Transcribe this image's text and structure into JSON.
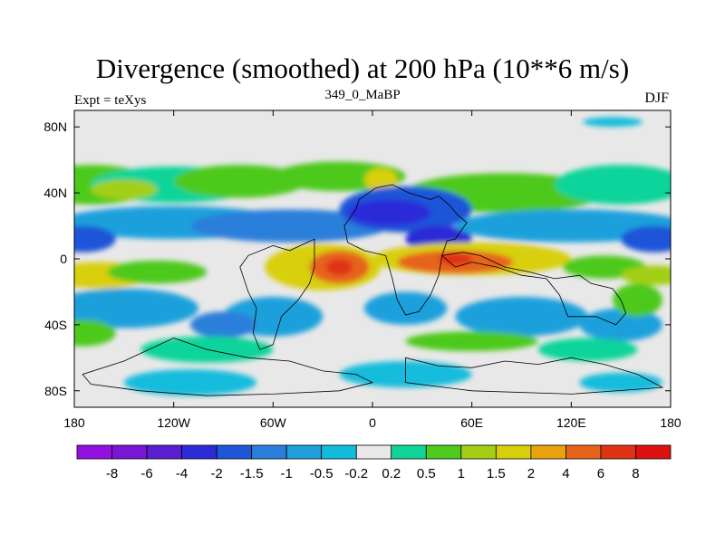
{
  "chart_data": {
    "type": "heatmap",
    "title": "Divergence (smoothed) at 200 hPa (10**6 m/s)",
    "subtitle": "349_0_MaBP",
    "left_label": "Expt = teXys",
    "right_label": "DJF",
    "x_ticks": [
      "180",
      "120W",
      "60W",
      "0",
      "60E",
      "120E",
      "180"
    ],
    "x_tick_values": [
      -180,
      -120,
      -60,
      0,
      60,
      120,
      180
    ],
    "y_ticks": [
      "80N",
      "40N",
      "0",
      "40S",
      "80S"
    ],
    "y_tick_values": [
      80,
      40,
      0,
      -40,
      -80
    ],
    "xlim": [
      -180,
      180
    ],
    "ylim": [
      -90,
      90
    ],
    "grid": false,
    "colorbar": {
      "position": "bottom",
      "levels": [
        "-8",
        "-6",
        "-4",
        "-2",
        "-1.5",
        "-1",
        "-0.5",
        "-0.2",
        "0.2",
        "0.5",
        "1",
        "1.5",
        "2",
        "4",
        "6",
        "8"
      ],
      "colors": [
        "#9410E0",
        "#7A14D6",
        "#5A1ED0",
        "#2B2BD8",
        "#1F55D8",
        "#2A7FDA",
        "#1FA0DC",
        "#12BCDC",
        "#E8E8E8",
        "#10D49A",
        "#4EC91E",
        "#A2CF14",
        "#D8CF0A",
        "#E8A20C",
        "#E6641A",
        "#E03314",
        "#E01010"
      ]
    },
    "bands": [
      {
        "lat_range": [
          80,
          90
        ],
        "dominant_level": "-0.5 to -0.2",
        "color": "#12BCDC",
        "note": "small patch near 150E"
      },
      {
        "lat_range": [
          35,
          55
        ],
        "dominant_level": "0.2 to 1",
        "color": "#4EC91E"
      },
      {
        "lat_range": [
          10,
          35
        ],
        "dominant_level": "-2 to -0.5",
        "color": "#1F55D8"
      },
      {
        "lat_range": [
          -15,
          10
        ],
        "dominant_level": "1 to 4",
        "color": "#E8A20C",
        "maxima_near_lon": [
          -20,
          50
        ]
      },
      {
        "lat_range": [
          -45,
          -15
        ],
        "dominant_level": "-1.5 to -0.2",
        "color": "#2A7FDA"
      },
      {
        "lat_range": [
          -80,
          -45
        ],
        "dominant_level": "-0.2 to 0.5",
        "color": "#E8E8E8"
      }
    ]
  }
}
